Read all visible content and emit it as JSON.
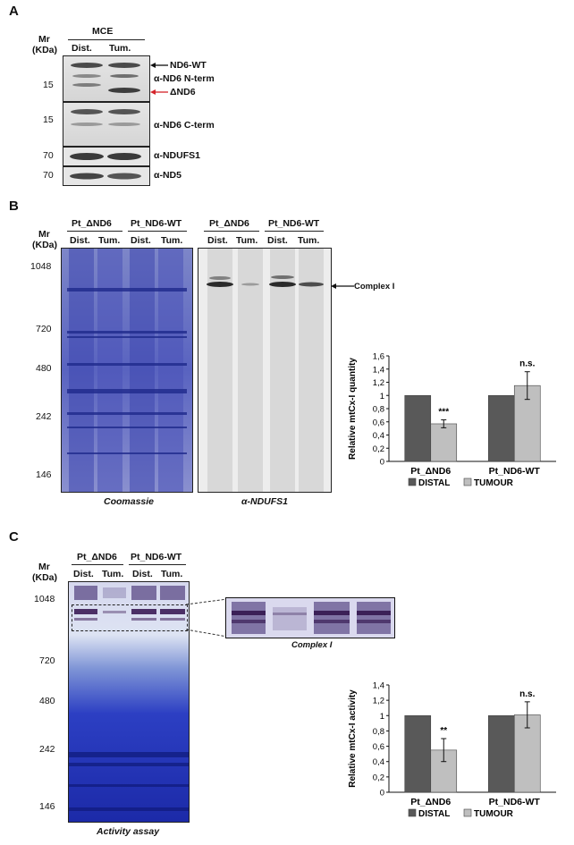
{
  "panel_a": {
    "letter": "A",
    "mr_label": "Mr",
    "kda_label": "(KDa)",
    "group_label": "MCE",
    "lanes": [
      "Dist.",
      "Tum."
    ],
    "mw_markers": [
      "15",
      "15",
      "70",
      "70"
    ],
    "labels": {
      "nd6_wt": "ND6-WT",
      "nterm": "α-ND6 N-term",
      "delta_nd6": "ΔND6",
      "cterm": "α-ND6 C-term",
      "ndufs1": "α-NDUFS1",
      "nd5": "α-ND5"
    }
  },
  "panel_b": {
    "letter": "B",
    "mr_label": "Mr",
    "kda_label": "(KDa)",
    "groups": [
      "Pt_ΔND6",
      "Pt_ND6-WT",
      "Pt_ΔND6",
      "Pt_ND6-WT"
    ],
    "lanes": [
      "Dist.",
      "Tum.",
      "Dist.",
      "Tum.",
      "Dist.",
      "Tum.",
      "Dist.",
      "Tum."
    ],
    "mw_markers": [
      "1048",
      "720",
      "480",
      "242",
      "146"
    ],
    "caption_left": "Coomassie",
    "caption_right": "α-NDUFS1",
    "complex_label": "Complex I"
  },
  "panel_c": {
    "letter": "C",
    "mr_label": "Mr",
    "kda_label": "(KDa)",
    "groups": [
      "Pt_ΔND6",
      "Pt_ND6-WT"
    ],
    "lanes": [
      "Dist.",
      "Tum.",
      "Dist.",
      "Tum."
    ],
    "mw_markers": [
      "1048",
      "720",
      "480",
      "242",
      "146"
    ],
    "caption": "Activity assay",
    "zoom_caption": "Complex I"
  },
  "chart_data": [
    {
      "type": "bar",
      "categories": [
        "Pt_ΔND6",
        "Pt_ND6-WT"
      ],
      "series": [
        {
          "name": "DISTAL",
          "values": [
            1.0,
            1.0
          ],
          "error": [
            0,
            0
          ]
        },
        {
          "name": "TUMOUR",
          "values": [
            0.57,
            1.15
          ],
          "error": [
            0.06,
            0.21
          ]
        }
      ],
      "ylabel": "Relative mtCx-I quantity",
      "ylim": [
        0,
        1.6
      ],
      "yticks": [
        "0",
        "0,2",
        "0,4",
        "0,6",
        "0,8",
        "1",
        "1,2",
        "1,4",
        "1,6"
      ],
      "annotations": [
        "***",
        "n.s."
      ],
      "colors": [
        "#595959",
        "#bfbfbf"
      ],
      "legend": "bottom"
    },
    {
      "type": "bar",
      "categories": [
        "Pt_ΔND6",
        "Pt_ND6-WT"
      ],
      "series": [
        {
          "name": "DISTAL",
          "values": [
            1.0,
            1.0
          ],
          "error": [
            0,
            0
          ]
        },
        {
          "name": "TUMOUR",
          "values": [
            0.55,
            1.01
          ],
          "error": [
            0.15,
            0.17
          ]
        }
      ],
      "ylabel": "Relative mtCx-I activity",
      "ylim": [
        0,
        1.4
      ],
      "yticks": [
        "0",
        "0,2",
        "0,4",
        "0,6",
        "0,8",
        "1",
        "1,2",
        "1,4"
      ],
      "annotations": [
        "**",
        "n.s."
      ],
      "colors": [
        "#595959",
        "#bfbfbf"
      ],
      "legend": "bottom"
    }
  ]
}
